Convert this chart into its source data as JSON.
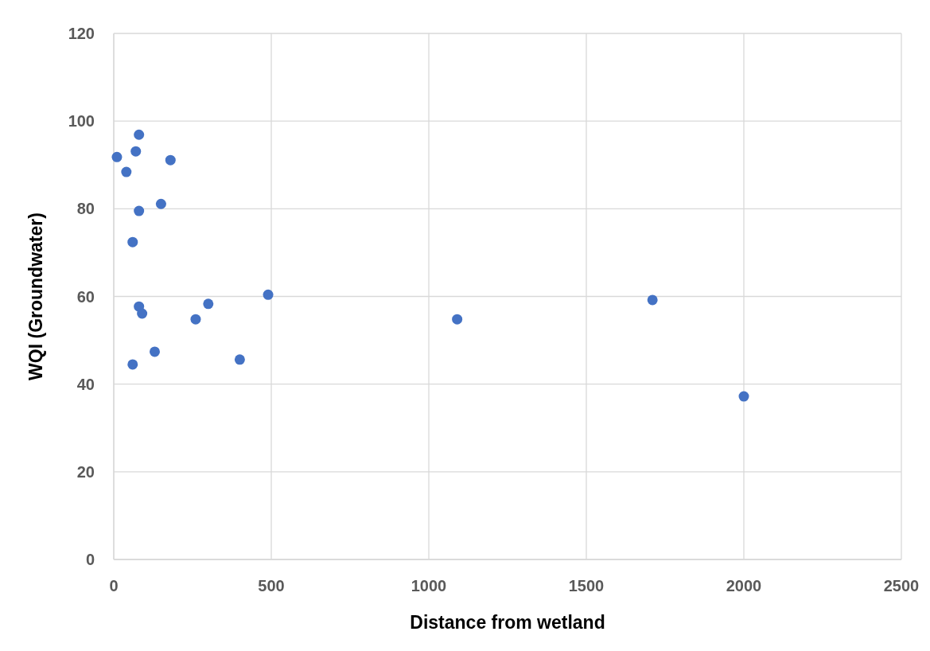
{
  "chart_data": {
    "type": "scatter",
    "xlabel": "Distance from wetland",
    "ylabel": "WQI (Groundwater)",
    "x": [
      10,
      40,
      70,
      80,
      180,
      150,
      80,
      60,
      80,
      90,
      60,
      130,
      260,
      300,
      400,
      490,
      1090,
      1710,
      2000
    ],
    "series": [
      {
        "color": "#4472c4",
        "values": [
          91.8,
          88.4,
          93.1,
          96.9,
          91.1,
          81.1,
          79.5,
          72.4,
          57.7,
          56.1,
          44.5,
          47.4,
          54.8,
          58.3,
          45.6,
          60.4,
          54.8,
          59.2,
          37.2
        ]
      }
    ],
    "xlim": [
      0,
      2500
    ],
    "xticks": [
      0,
      500,
      1000,
      1500,
      2000,
      2500
    ],
    "ylim": [
      0,
      120
    ],
    "yticks": [
      0,
      20,
      40,
      60,
      80,
      100,
      120
    ],
    "grid": true,
    "marker": "circle"
  }
}
